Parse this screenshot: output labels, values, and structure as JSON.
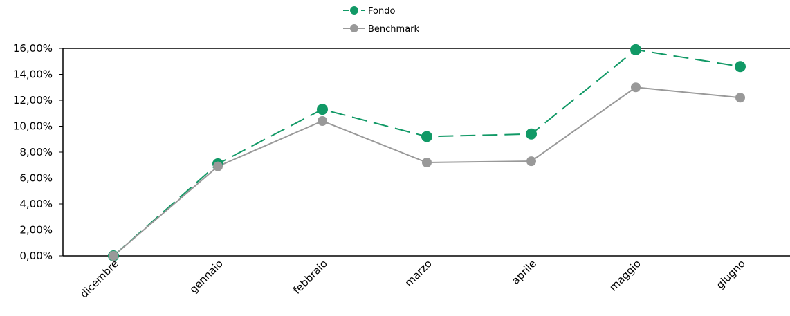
{
  "chart_data": {
    "type": "line",
    "categories": [
      "dicembre",
      "gennaio",
      "febbraio",
      "marzo",
      "aprile",
      "maggio",
      "giugno"
    ],
    "series": [
      {
        "name": "Fondo",
        "values": [
          0.0,
          7.1,
          11.3,
          9.2,
          9.4,
          15.9,
          14.6
        ],
        "color": "#119966",
        "dash": "dashed"
      },
      {
        "name": "Benchmark",
        "values": [
          0.0,
          6.9,
          10.4,
          7.2,
          7.3,
          13.0,
          12.2
        ],
        "color": "#999999",
        "dash": "solid"
      }
    ],
    "ylim": [
      0,
      16
    ],
    "yticks": [
      "0,00%",
      "2,00%",
      "4,00%",
      "6,00%",
      "8,00%",
      "10,00%",
      "12,00%",
      "14,00%",
      "16,00%"
    ],
    "title": "",
    "xlabel": "",
    "ylabel": "",
    "legend_position": "top-center",
    "grid": false
  }
}
